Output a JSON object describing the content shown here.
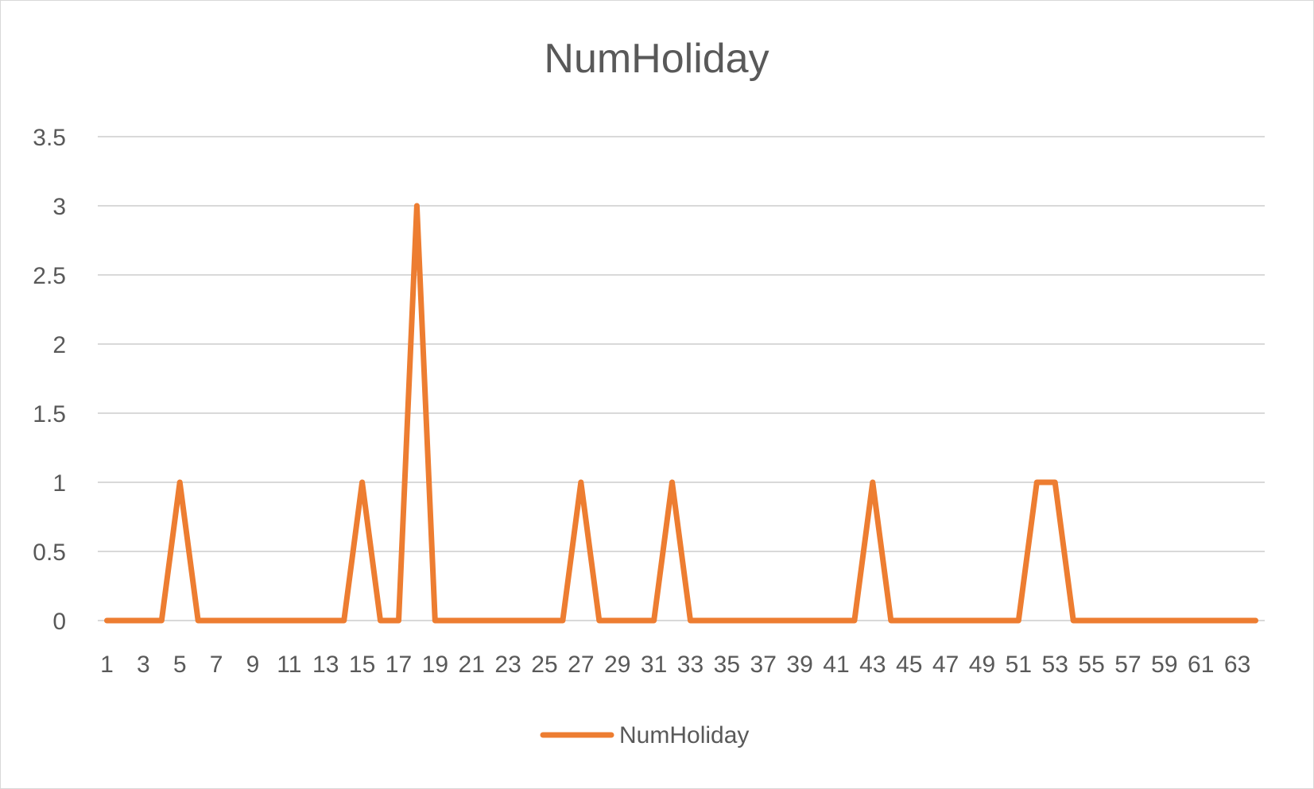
{
  "chart_data": {
    "type": "line",
    "title": "NumHoliday",
    "xlabel": "",
    "ylabel": "",
    "x": [
      1,
      2,
      3,
      4,
      5,
      6,
      7,
      8,
      9,
      10,
      11,
      12,
      13,
      14,
      15,
      16,
      17,
      18,
      19,
      20,
      21,
      22,
      23,
      24,
      25,
      26,
      27,
      28,
      29,
      30,
      31,
      32,
      33,
      34,
      35,
      36,
      37,
      38,
      39,
      40,
      41,
      42,
      43,
      44,
      45,
      46,
      47,
      48,
      49,
      50,
      51,
      52,
      53,
      54,
      55,
      56,
      57,
      58,
      59,
      60,
      61,
      62,
      63,
      64
    ],
    "x_tick_labels": [
      "1",
      "3",
      "5",
      "7",
      "9",
      "11",
      "13",
      "15",
      "17",
      "19",
      "21",
      "23",
      "25",
      "27",
      "29",
      "31",
      "33",
      "35",
      "37",
      "39",
      "41",
      "43",
      "45",
      "47",
      "49",
      "51",
      "53",
      "55",
      "57",
      "59",
      "61",
      "63"
    ],
    "y_ticks": [
      "0",
      "0.5",
      "1",
      "1.5",
      "2",
      "2.5",
      "3",
      "3.5"
    ],
    "ylim": [
      0,
      3.5
    ],
    "grid": true,
    "legend_position": "bottom",
    "series": [
      {
        "name": "NumHoliday",
        "color": "#ed7d31",
        "values": [
          0,
          0,
          0,
          0,
          1,
          0,
          0,
          0,
          0,
          0,
          0,
          0,
          0,
          0,
          1,
          0,
          0,
          3,
          0,
          0,
          0,
          0,
          0,
          0,
          0,
          0,
          1,
          0,
          0,
          0,
          0,
          1,
          0,
          0,
          0,
          0,
          0,
          0,
          0,
          0,
          0,
          0,
          1,
          0,
          0,
          0,
          0,
          0,
          0,
          0,
          0,
          1,
          1,
          0,
          0,
          0,
          0,
          0,
          0,
          0,
          0,
          0,
          0,
          0
        ]
      }
    ]
  }
}
